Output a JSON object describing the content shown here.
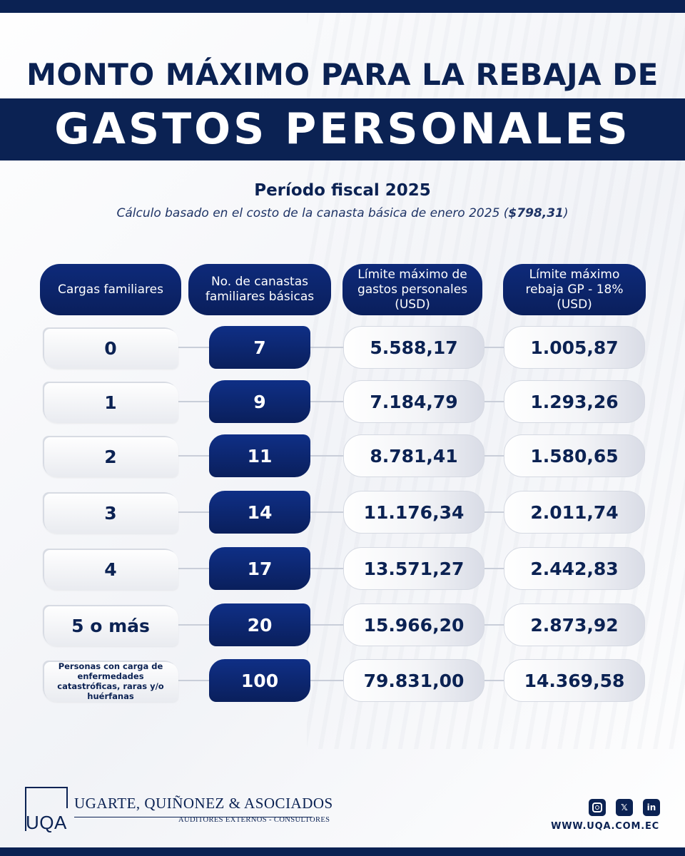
{
  "header": {
    "title_line1": "MONTO MÁXIMO PARA LA REBAJA DE",
    "title_line2": "GASTOS PERSONALES"
  },
  "subtitle": "Período fiscal 2025",
  "note": {
    "text": "Cálculo basado en el costo de la canasta básica de enero 2025 (",
    "amount": "$798,31",
    "close": ")"
  },
  "table": {
    "columns": [
      "Cargas familiares",
      "No. de canastas familiares básicas",
      "Límite máximo de gastos personales (USD)",
      "Límite máximo rebaja GP - 18% (USD)"
    ],
    "rows": [
      {
        "cargas": "0",
        "canastas": "7",
        "limite": "5.588,17",
        "rebaja": "1.005,87"
      },
      {
        "cargas": "1",
        "canastas": "9",
        "limite": "7.184,79",
        "rebaja": "1.293,26"
      },
      {
        "cargas": "2",
        "canastas": "11",
        "limite": "8.781,41",
        "rebaja": "1.580,65"
      },
      {
        "cargas": "3",
        "canastas": "14",
        "limite": "11.176,34",
        "rebaja": "2.011,74"
      },
      {
        "cargas": "4",
        "canastas": "17",
        "limite": "13.571,27",
        "rebaja": "2.442,83"
      },
      {
        "cargas": "5 o más",
        "canastas": "20",
        "limite": "15.966,20",
        "rebaja": "2.873,92"
      },
      {
        "cargas": "Personas con carga de enfermedades catastróficas, raras y/o huérfanas",
        "canastas": "100",
        "limite": "79.831,00",
        "rebaja": "14.369,58"
      }
    ]
  },
  "footer": {
    "logo": "UQA",
    "firm_name": "UGARTE, QUIÑONEZ & ASOCIADOS",
    "tagline": "AUDITORES EXTERNOS  -  CONSULTORES",
    "website": "WWW.UQA.COM.EC",
    "social": {
      "x": "𝕏",
      "linkedin": "in"
    },
    "icons": [
      "instagram-icon",
      "x-icon",
      "linkedin-icon"
    ],
    "brand_color": "#0b2253"
  }
}
